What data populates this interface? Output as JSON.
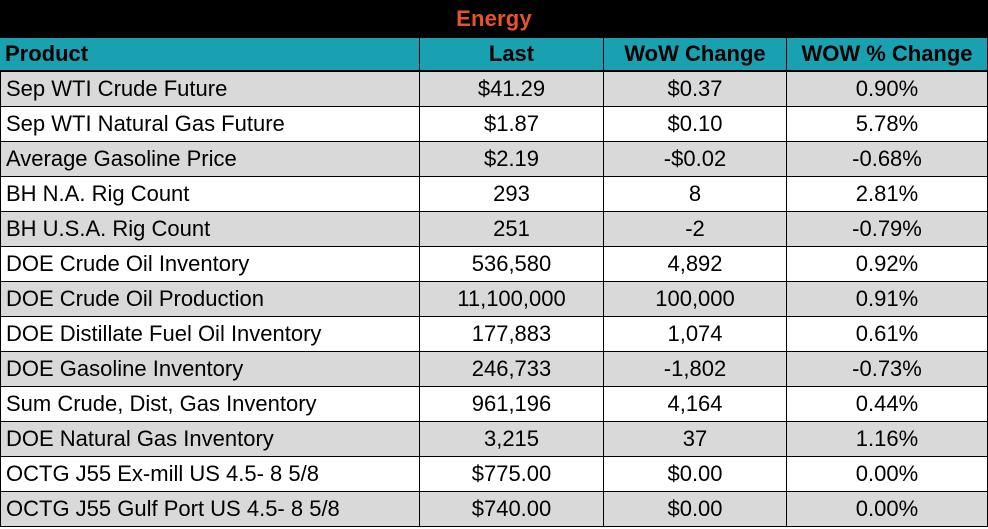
{
  "title": "Energy",
  "colors": {
    "title_bg": "#000000",
    "title_text": "#e8542a",
    "header_bg": "#19a1b2",
    "row_shaded": "#d9d9d9",
    "row_plain": "#ffffff"
  },
  "headers": {
    "product": "Product",
    "last": "Last",
    "wow_change": "WoW Change",
    "wow_pct_change": "WOW % Change"
  },
  "rows": [
    {
      "product": "Sep WTI Crude Future",
      "last": "$41.29",
      "wow_change": "$0.37",
      "wow_pct": "0.90%"
    },
    {
      "product": "Sep WTI Natural Gas Future",
      "last": "$1.87",
      "wow_change": "$0.10",
      "wow_pct": "5.78%"
    },
    {
      "product": "Average Gasoline Price",
      "last": "$2.19",
      "wow_change": "-$0.02",
      "wow_pct": "-0.68%"
    },
    {
      "product": "BH N.A. Rig Count",
      "last": "293",
      "wow_change": "8",
      "wow_pct": "2.81%"
    },
    {
      "product": "BH U.S.A. Rig Count",
      "last": "251",
      "wow_change": "-2",
      "wow_pct": "-0.79%"
    },
    {
      "product": "DOE Crude Oil Inventory",
      "last": "536,580",
      "wow_change": "4,892",
      "wow_pct": "0.92%"
    },
    {
      "product": "DOE Crude Oil Production",
      "last": "11,100,000",
      "wow_change": "100,000",
      "wow_pct": "0.91%"
    },
    {
      "product": "DOE Distillate Fuel Oil Inventory",
      "last": "177,883",
      "wow_change": "1,074",
      "wow_pct": "0.61%"
    },
    {
      "product": "DOE Gasoline Inventory",
      "last": "246,733",
      "wow_change": "-1,802",
      "wow_pct": "-0.73%"
    },
    {
      "product": "Sum Crude, Dist, Gas Inventory",
      "last": "961,196",
      "wow_change": "4,164",
      "wow_pct": "0.44%"
    },
    {
      "product": "DOE Natural Gas Inventory",
      "last": "3,215",
      "wow_change": "37",
      "wow_pct": "1.16%"
    },
    {
      "product": "OCTG J55 Ex-mill US 4.5- 8 5/8",
      "last": "$775.00",
      "wow_change": "$0.00",
      "wow_pct": "0.00%"
    },
    {
      "product": "OCTG J55 Gulf Port US 4.5- 8 5/8",
      "last": "$740.00",
      "wow_change": "$0.00",
      "wow_pct": "0.00%"
    }
  ]
}
